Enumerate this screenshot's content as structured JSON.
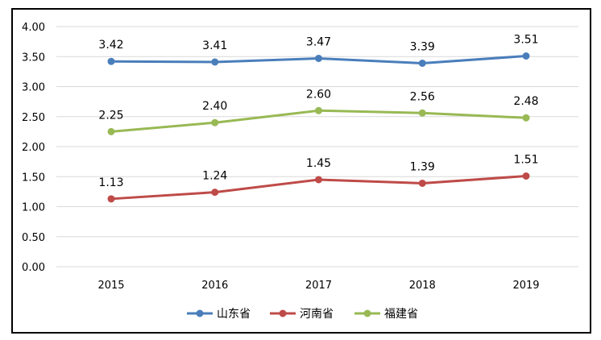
{
  "chart_data": {
    "type": "line",
    "categories": [
      "2015",
      "2016",
      "2017",
      "2018",
      "2019"
    ],
    "ylim": [
      0,
      4
    ],
    "yticks": [
      "0.00",
      "0.50",
      "1.00",
      "1.50",
      "2.00",
      "2.50",
      "3.00",
      "3.50",
      "4.00"
    ],
    "grid": true,
    "legend_position": "bottom",
    "series": [
      {
        "name": "山东省",
        "color": "#4a7ebb",
        "values": [
          3.42,
          3.41,
          3.47,
          3.39,
          3.51
        ],
        "labels": [
          "3.42",
          "3.41",
          "3.47",
          "3.39",
          "3.51"
        ]
      },
      {
        "name": "河南省",
        "color": "#be4b48",
        "values": [
          1.13,
          1.24,
          1.45,
          1.39,
          1.51
        ],
        "labels": [
          "1.13",
          "1.24",
          "1.45",
          "1.39",
          "1.51"
        ]
      },
      {
        "name": "福建省",
        "color": "#98b954",
        "values": [
          2.25,
          2.4,
          2.6,
          2.56,
          2.48
        ],
        "labels": [
          "2.25",
          "2.40",
          "2.60",
          "2.56",
          "2.48"
        ]
      }
    ]
  }
}
